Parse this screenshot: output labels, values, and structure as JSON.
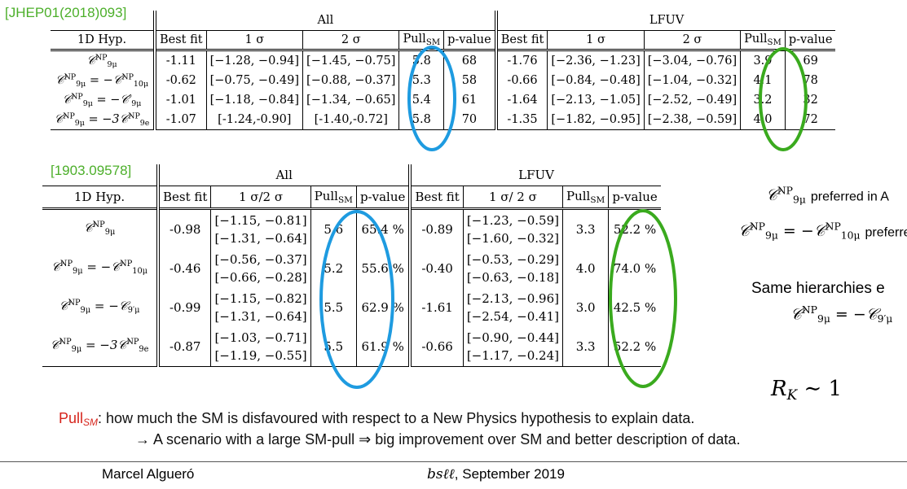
{
  "table1": {
    "ref": "[JHEP01(2018)093]",
    "group_all": "All",
    "group_lfuv": "LFUV",
    "headers": [
      "1D Hyp.",
      "Best fit",
      "1 σ",
      "2 σ",
      "Pull",
      "p-value",
      "Best fit",
      "1 σ",
      "2 σ",
      "Pull",
      "p-value"
    ],
    "pull_sub": "SM",
    "rows": [
      {
        "hyp_html": "𝒞<sup>NP</sup><sub>9μ</sub>",
        "all": [
          "-1.11",
          "[−1.28, −0.94]",
          "[−1.45, −0.75]",
          "5.8",
          "68"
        ],
        "lfuv": [
          "-1.76",
          "[−2.36, −1.23]",
          "[−3.04, −0.76]",
          "3.9",
          "69"
        ]
      },
      {
        "hyp_html": "𝒞<sup>NP</sup><sub>9μ</sub> = −𝒞<sup>NP</sup><sub>10μ</sub>",
        "all": [
          "-0.62",
          "[−0.75, −0.49]",
          "[−0.88, −0.37]",
          "5.3",
          "58"
        ],
        "lfuv": [
          "-0.66",
          "[−0.84, −0.48]",
          "[−1.04, −0.32]",
          "4.1",
          "78"
        ]
      },
      {
        "hyp_html": "𝒞<sup>NP</sup><sub>9μ</sub> = −𝒞′<sub>9μ</sub>",
        "all": [
          "-1.01",
          "[−1.18, −0.84]",
          "[−1.34, −0.65]",
          "5.4",
          "61"
        ],
        "lfuv": [
          "-1.64",
          "[−2.13, −1.05]",
          "[−2.52, −0.49]",
          "3.2",
          "32"
        ]
      },
      {
        "hyp_html": "𝒞<sup>NP</sup><sub>9μ</sub> = −3𝒞<sup>NP</sup><sub>9e</sub>",
        "all": [
          "-1.07",
          "[-1.24,-0.90]",
          "[-1.40,-0.72]",
          "5.8",
          "70"
        ],
        "lfuv": [
          "-1.35",
          "[−1.82, −0.95]",
          "[−2.38, −0.59]",
          "4.0",
          "72"
        ]
      }
    ]
  },
  "table2": {
    "ref": "[1903.09578]",
    "group_all": "All",
    "group_lfuv": "LFUV",
    "headers": [
      "1D Hyp.",
      "Best fit",
      "1 σ/2 σ",
      "Pull",
      "p-value",
      "Best fit",
      "1 σ/ 2 σ",
      "Pull",
      "p-value"
    ],
    "pull_sub": "SM",
    "rows": [
      {
        "hyp_html": "𝒞<sup>NP</sup><sub>9μ</sub>",
        "all": [
          "-0.98",
          "[−1.15, −0.81]",
          "[−1.31, −0.64]",
          "5.6",
          "65.4 %"
        ],
        "lfuv": [
          "-0.89",
          "[−1.23, −0.59]",
          "[−1.60, −0.32]",
          "3.3",
          "52.2 %"
        ]
      },
      {
        "hyp_html": "𝒞<sup>NP</sup><sub>9μ</sub> = −𝒞<sup>NP</sup><sub>10μ</sub>",
        "all": [
          "-0.46",
          "[−0.56, −0.37]",
          "[−0.66, −0.28]",
          "5.2",
          "55.6 %"
        ],
        "lfuv": [
          "-0.40",
          "[−0.53, −0.29]",
          "[−0.63, −0.18]",
          "4.0",
          "74.0 %"
        ]
      },
      {
        "hyp_html": "𝒞<sup>NP</sup><sub>9μ</sub> = −𝒞<sub>9′μ</sub>",
        "all": [
          "-0.99",
          "[−1.15, −0.82]",
          "[−1.31, −0.64]",
          "5.5",
          "62.9 %"
        ],
        "lfuv": [
          "-1.61",
          "[−2.13, −0.96]",
          "[−2.54, −0.41]",
          "3.0",
          "42.5 %"
        ]
      },
      {
        "hyp_html": "𝒞<sup>NP</sup><sub>9μ</sub> = −3𝒞<sup>NP</sup><sub>9e</sub>",
        "all": [
          "-0.87",
          "[−1.03, −0.71]",
          "[−1.19, −0.55]",
          "5.5",
          "61.9 %"
        ],
        "lfuv": [
          "-0.66",
          "[−0.90, −0.44]",
          "[−1.17, −0.24]",
          "3.3",
          "52.2 %"
        ]
      }
    ]
  },
  "side": {
    "line1_note": "preferred in A",
    "line2_note": "preferre",
    "line3": "Same hierarchies e",
    "rk": "R",
    "rk_sub": "K",
    "rk_rest": " ∼ 1"
  },
  "pull_note": {
    "label": "Pull",
    "label_sub": "SM",
    "line1": ": how much the SM is disfavoured with respect to a New Physics hypothesis to explain data.",
    "line2": "→ A scenario with a large SM-pull ⇒ big improvement over SM and better description of data."
  },
  "footer": {
    "author": "Marcel Algueró",
    "conf_italic": "bsℓℓ",
    "conf_rest": ", September 2019"
  },
  "colors": {
    "blue_circle": "#1e9be0",
    "green_circle": "#3aaa1e",
    "ref_green": "#4caf2a",
    "pull_red": "#d6241c"
  }
}
